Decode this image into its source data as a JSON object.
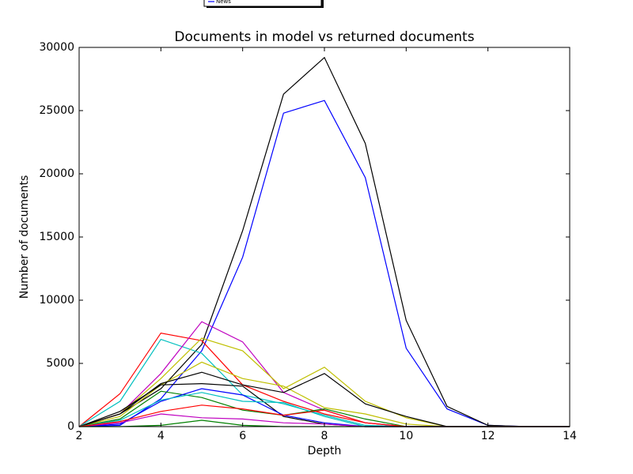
{
  "chart_data": {
    "type": "line",
    "title": "Documents in model vs returned documents",
    "x_label": "Depth",
    "y_label": "Number of documents",
    "x": [
      2,
      3,
      4,
      5,
      6,
      7,
      8,
      9,
      10,
      11,
      12,
      13,
      14
    ],
    "xlim": [
      2,
      14
    ],
    "xticks": [
      2,
      4,
      6,
      8,
      10,
      12,
      14
    ],
    "ylim": [
      0,
      30000
    ],
    "yticks": [
      0,
      5000,
      10000,
      15000,
      20000,
      25000,
      30000
    ],
    "grid": false,
    "legend_position": "top",
    "series": [
      {
        "name": "News",
        "color": "#0000ff",
        "values": [
          0,
          100,
          2200,
          6000,
          13400,
          24800,
          25800,
          19700,
          6200,
          1400,
          100,
          0,
          0
        ]
      },
      {
        "color": "#000000",
        "values": [
          0,
          1000,
          3000,
          6500,
          15500,
          26300,
          29200,
          22400,
          8400,
          1600,
          100,
          0,
          0
        ]
      },
      {
        "color": "#ff0000",
        "values": [
          0,
          2600,
          7400,
          6800,
          3300,
          2000,
          1000,
          300,
          0,
          0,
          0,
          0,
          0
        ]
      },
      {
        "color": "#00bfbf",
        "values": [
          0,
          2000,
          6900,
          5800,
          2500,
          1800,
          900,
          100,
          0,
          0,
          0,
          0,
          0
        ]
      },
      {
        "color": "#bf00bf",
        "values": [
          0,
          1000,
          4200,
          8300,
          6700,
          2700,
          1300,
          300,
          0,
          0,
          0,
          0,
          0
        ]
      },
      {
        "color": "#bfbf00",
        "values": [
          0,
          1000,
          3800,
          7000,
          6000,
          3000,
          4700,
          2000,
          700,
          0,
          0,
          0,
          0
        ]
      },
      {
        "color": "#bfbf00",
        "values": [
          0,
          800,
          3300,
          5100,
          3800,
          3200,
          1500,
          1000,
          200,
          0,
          0,
          0,
          0
        ]
      },
      {
        "color": "#000000",
        "values": [
          0,
          1000,
          3400,
          4300,
          3300,
          2700,
          4200,
          1800,
          800,
          0,
          0,
          0,
          0
        ]
      },
      {
        "color": "#000000",
        "values": [
          0,
          1200,
          3300,
          3400,
          3200,
          800,
          200,
          0,
          0,
          0,
          0,
          0,
          0
        ]
      },
      {
        "color": "#008000",
        "values": [
          0,
          600,
          2800,
          2300,
          1300,
          900,
          1400,
          600,
          0,
          0,
          0,
          0,
          0
        ]
      },
      {
        "color": "#0000ff",
        "values": [
          0,
          200,
          2000,
          3000,
          2500,
          900,
          300,
          0,
          0,
          0,
          0,
          0,
          0
        ]
      },
      {
        "color": "#00bfbf",
        "values": [
          0,
          500,
          2100,
          2700,
          2000,
          1900,
          800,
          0,
          0,
          0,
          0,
          0,
          0
        ]
      },
      {
        "color": "#bf00bf",
        "values": [
          0,
          300,
          1000,
          700,
          600,
          300,
          200,
          0,
          0,
          0,
          0,
          0,
          0
        ]
      },
      {
        "color": "#ff0000",
        "values": [
          0,
          400,
          1200,
          1700,
          1400,
          900,
          1300,
          300,
          0,
          0,
          0,
          0,
          0
        ]
      },
      {
        "color": "#008000",
        "values": [
          0,
          0,
          100,
          500,
          100,
          0,
          0,
          0,
          0,
          0,
          0,
          0,
          0
        ]
      }
    ]
  }
}
